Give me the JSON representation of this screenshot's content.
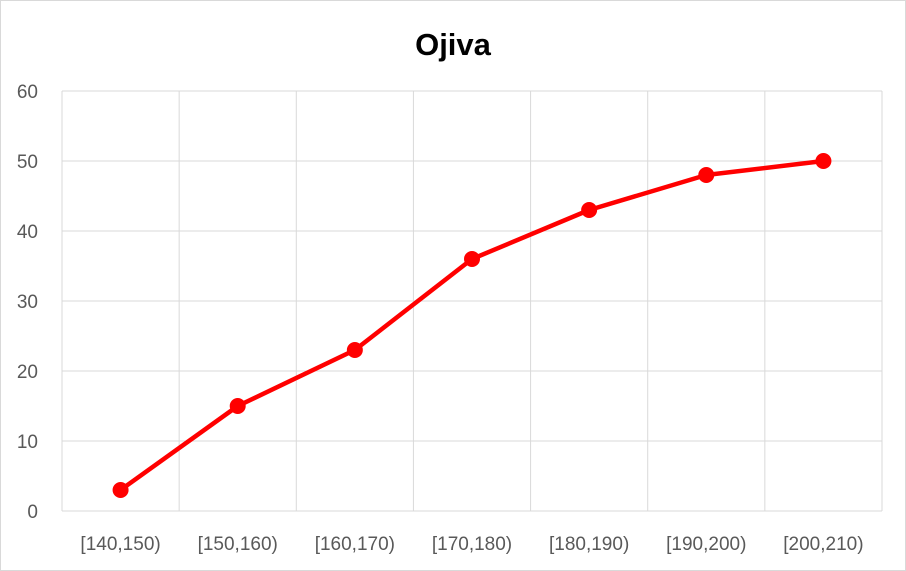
{
  "chart_data": {
    "type": "line",
    "title": "Ojiva",
    "xlabel": "",
    "ylabel": "",
    "categories": [
      "[140,150)",
      "[150,160)",
      "[160,170)",
      "[170,180)",
      "[180,190)",
      "[190,200)",
      "[200,210)"
    ],
    "series": [
      {
        "values": [
          3,
          15,
          23,
          36,
          43,
          48,
          50
        ],
        "color": "#ff0000"
      }
    ],
    "ylim": [
      0,
      60
    ],
    "yticks": [
      0,
      10,
      20,
      30,
      40,
      50,
      60
    ],
    "grid": true,
    "legend": "none",
    "gridColor": "#d9d9d9"
  }
}
